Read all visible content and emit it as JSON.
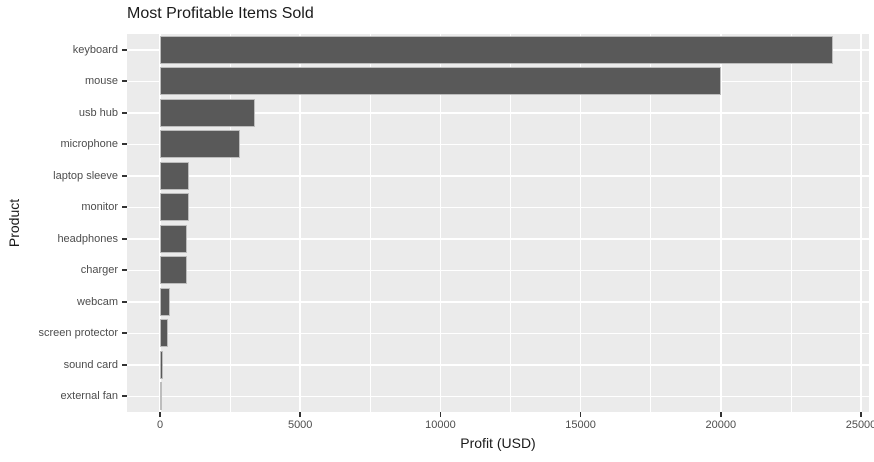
{
  "title": "Most Profitable Items Sold",
  "chart_data": {
    "type": "bar",
    "orientation": "horizontal",
    "title": "Most Profitable Items Sold",
    "xlabel": "Profit (USD)",
    "ylabel": "Product",
    "categories": [
      "keyboard",
      "mouse",
      "usb hub",
      "microphone",
      "laptop sleeve",
      "monitor",
      "headphones",
      "charger",
      "webcam",
      "screen protector",
      "sound card",
      "external fan"
    ],
    "values": [
      24000,
      20000,
      3400,
      2850,
      1050,
      1020,
      980,
      950,
      340,
      300,
      120,
      80
    ],
    "x_ticks": [
      0,
      5000,
      10000,
      15000,
      20000,
      25000
    ],
    "x_tick_labels": [
      "0",
      "5000",
      "10000",
      "15000",
      "20000",
      "25000"
    ],
    "x_minor_ticks": [
      2500,
      7500,
      12500,
      17500,
      22500
    ],
    "xlim": [
      -1180,
      25300
    ],
    "grid": true,
    "legend": false,
    "colors": {
      "bar_fill": "#595959",
      "bar_border": "#bdbdbd",
      "panel_bg": "#ebebeb",
      "gridline": "#ffffff",
      "tick_label": "#4d4d4d",
      "title_text": "#1a1a1a"
    }
  }
}
